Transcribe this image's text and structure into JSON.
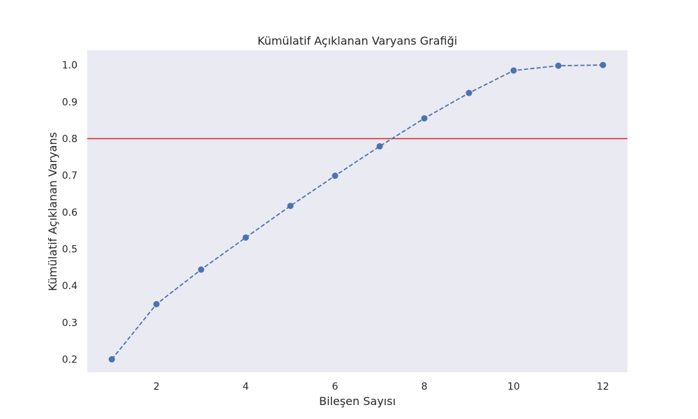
{
  "chart_data": {
    "type": "line",
    "title": "Kümülatif Açıklanan Varyans Grafiği",
    "xlabel": "Bileşen Sayısı",
    "ylabel": "Kümülatif Açıklanan Varyans",
    "xlim": [
      0.45,
      12.55
    ],
    "ylim": [
      0.165,
      1.04
    ],
    "xticks": [
      2,
      4,
      6,
      8,
      10,
      12
    ],
    "yticks": [
      0.2,
      0.3,
      0.4,
      0.5,
      0.6,
      0.7,
      0.8,
      0.9,
      1.0
    ],
    "xtick_labels": [
      "2",
      "4",
      "6",
      "8",
      "10",
      "12"
    ],
    "ytick_labels": [
      "0.2",
      "0.3",
      "0.4",
      "0.5",
      "0.6",
      "0.7",
      "0.8",
      "0.9",
      "1.0"
    ],
    "grid": false,
    "series": [
      {
        "name": "Kümülatif açıklanan varyans",
        "x": [
          1,
          2,
          3,
          4,
          5,
          6,
          7,
          8,
          9,
          10,
          11,
          12
        ],
        "values": [
          0.2,
          0.35,
          0.444,
          0.531,
          0.617,
          0.699,
          0.779,
          0.855,
          0.924,
          0.985,
          0.998,
          1.0
        ],
        "style": "dashed",
        "marker": "circle",
        "color": "#4c72b0"
      }
    ],
    "reference_line": {
      "axis": "y",
      "value": 0.8,
      "color": "#d62728"
    },
    "background_color": "#eaeaf2"
  }
}
